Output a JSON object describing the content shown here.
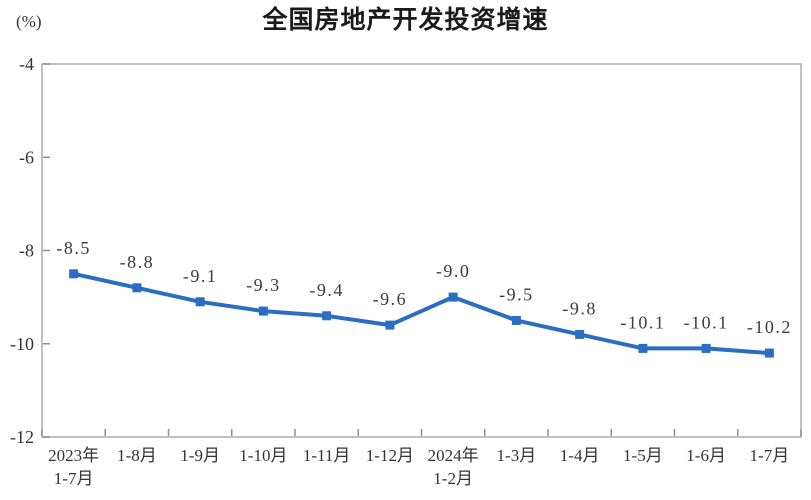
{
  "page": {
    "background": "#ffffff"
  },
  "header": {
    "title": "全国房地产开发投资增速",
    "y_axis_unit": "(%)"
  },
  "chart_data": {
    "type": "line",
    "title": "全国房地产开发投资增速",
    "xlabel": "",
    "ylabel": "(%)",
    "categories": [
      "2023年\n1-7月",
      "1-8月",
      "1-9月",
      "1-10月",
      "1-11月",
      "1-12月",
      "2024年\n1-2月",
      "1-3月",
      "1-4月",
      "1-5月",
      "1-6月",
      "1-7月"
    ],
    "series": [
      {
        "name": "全国房地产开发投资增速",
        "values": [
          -8.5,
          -8.8,
          -9.1,
          -9.3,
          -9.4,
          -9.6,
          -9.0,
          -9.5,
          -9.8,
          -10.1,
          -10.1,
          -10.2
        ],
        "data_labels": [
          "-8.5",
          "-8.8",
          "-9.1",
          "-9.3",
          "-9.4",
          "-9.6",
          "-9.0",
          "-9.5",
          "-9.8",
          "-10.1",
          "-10.1",
          "-10.2"
        ]
      }
    ],
    "ylim": [
      -12,
      -4
    ],
    "ytick_labels": [
      "-4",
      "-6",
      "-8",
      "-10",
      "-12"
    ],
    "ytick_values": [
      -4,
      -6,
      -8,
      -10,
      -12
    ],
    "grid": false,
    "legend": "none",
    "marker": "square",
    "colors": {
      "line": "#2b6cc4",
      "marker": "#2b6cc4",
      "data_label_text": "#3b3b3b",
      "axis_border": "#ababab",
      "tick": "#8f8f8f",
      "axis_text": "#333333",
      "title_text": "#1a1a1a"
    }
  }
}
